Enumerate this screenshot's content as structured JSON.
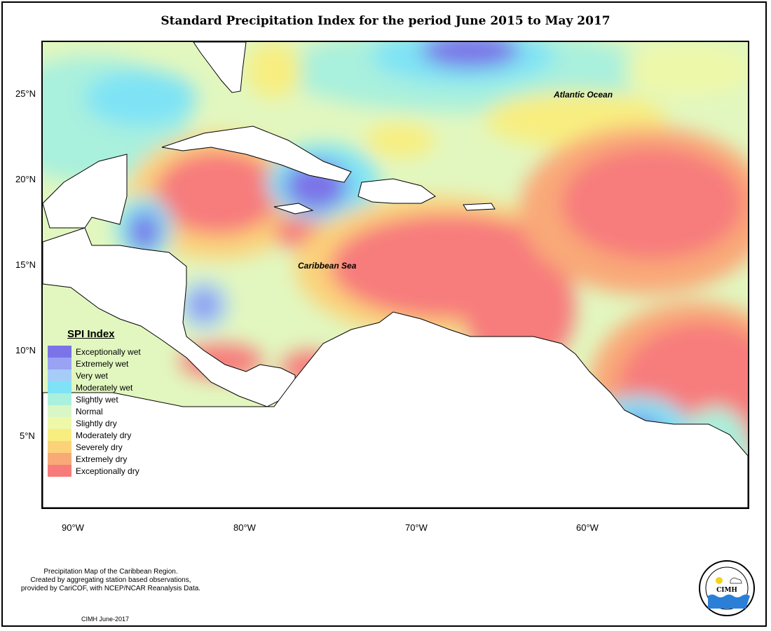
{
  "title": "Standard Precipitation Index for the period June 2015 to May 2017",
  "latitude_labels": [
    "25°N",
    "20°N",
    "15°N",
    "10°N",
    "5°N"
  ],
  "longitude_labels": [
    "90°W",
    "80°W",
    "70°W",
    "60°W"
  ],
  "labels": {
    "atlantic": "Atlantic Ocean",
    "caribbean": "Caribbean Sea"
  },
  "legend": {
    "title": "SPI Index",
    "items": [
      {
        "label": "Exceptionally wet",
        "color": "#7b73e8"
      },
      {
        "label": "Extremely wet",
        "color": "#9aa2f4"
      },
      {
        "label": "Very wet",
        "color": "#a6cdf8"
      },
      {
        "label": "Moderately wet",
        "color": "#7fe3f5"
      },
      {
        "label": "Slightly wet",
        "color": "#a9f0dd"
      },
      {
        "label": "Normal",
        "color": "#d9f6c6"
      },
      {
        "label": "Slightly dry",
        "color": "#eef8a8"
      },
      {
        "label": "Moderately dry",
        "color": "#f8ee80"
      },
      {
        "label": "Severely dry",
        "color": "#fbd27a"
      },
      {
        "label": "Extremely dry",
        "color": "#f9a978"
      },
      {
        "label": "Exceptionally dry",
        "color": "#f77b7b"
      }
    ]
  },
  "footnote": [
    "Precipitation Map of the Caribbean Region.",
    "Created by aggregating station based observations,",
    "provided by CariCOF, with NCEP/NCAR Reanalysis Data."
  ],
  "credit": "CIMH June-2017",
  "logo": {
    "text": "CIMH"
  }
}
